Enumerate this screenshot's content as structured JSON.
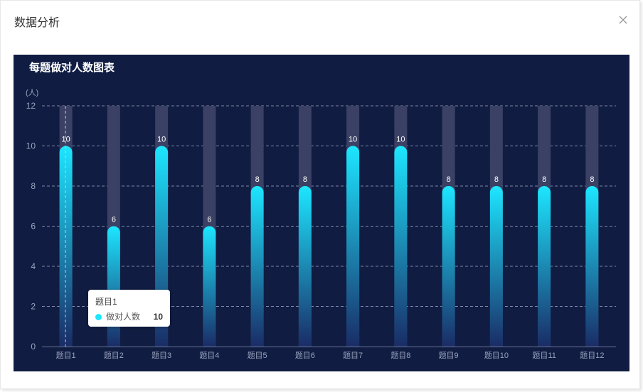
{
  "dialog": {
    "title": "数据分析",
    "close_icon": "close-icon"
  },
  "chart_data": {
    "type": "bar",
    "title": "每题做对人数图表",
    "ylabel": "(人)",
    "xlabel": "",
    "categories": [
      "题目1",
      "题目2",
      "题目3",
      "题目4",
      "题目5",
      "题目6",
      "题目7",
      "题目8",
      "题目9",
      "题目10",
      "题目11",
      "题目12"
    ],
    "series": [
      {
        "name": "做对人数",
        "values": [
          10,
          6,
          10,
          6,
          8,
          8,
          10,
          10,
          8,
          8,
          8,
          8
        ]
      }
    ],
    "ylim": [
      0,
      12
    ],
    "yticks": [
      0,
      2,
      4,
      6,
      8,
      10,
      12
    ],
    "grid": true,
    "background_max": 12,
    "colors": {
      "panel_bg": "#101c42",
      "bar_top": "#1de6ff",
      "bar_bottom": "#1a2c66",
      "shadow_bar": "#3a4164",
      "axis_text": "#9aa3bd",
      "label_text": "#ffffff",
      "grid": "#7e88a6"
    }
  },
  "tooltip": {
    "title": "题目1",
    "series_name": "做对人数",
    "value": "10"
  }
}
